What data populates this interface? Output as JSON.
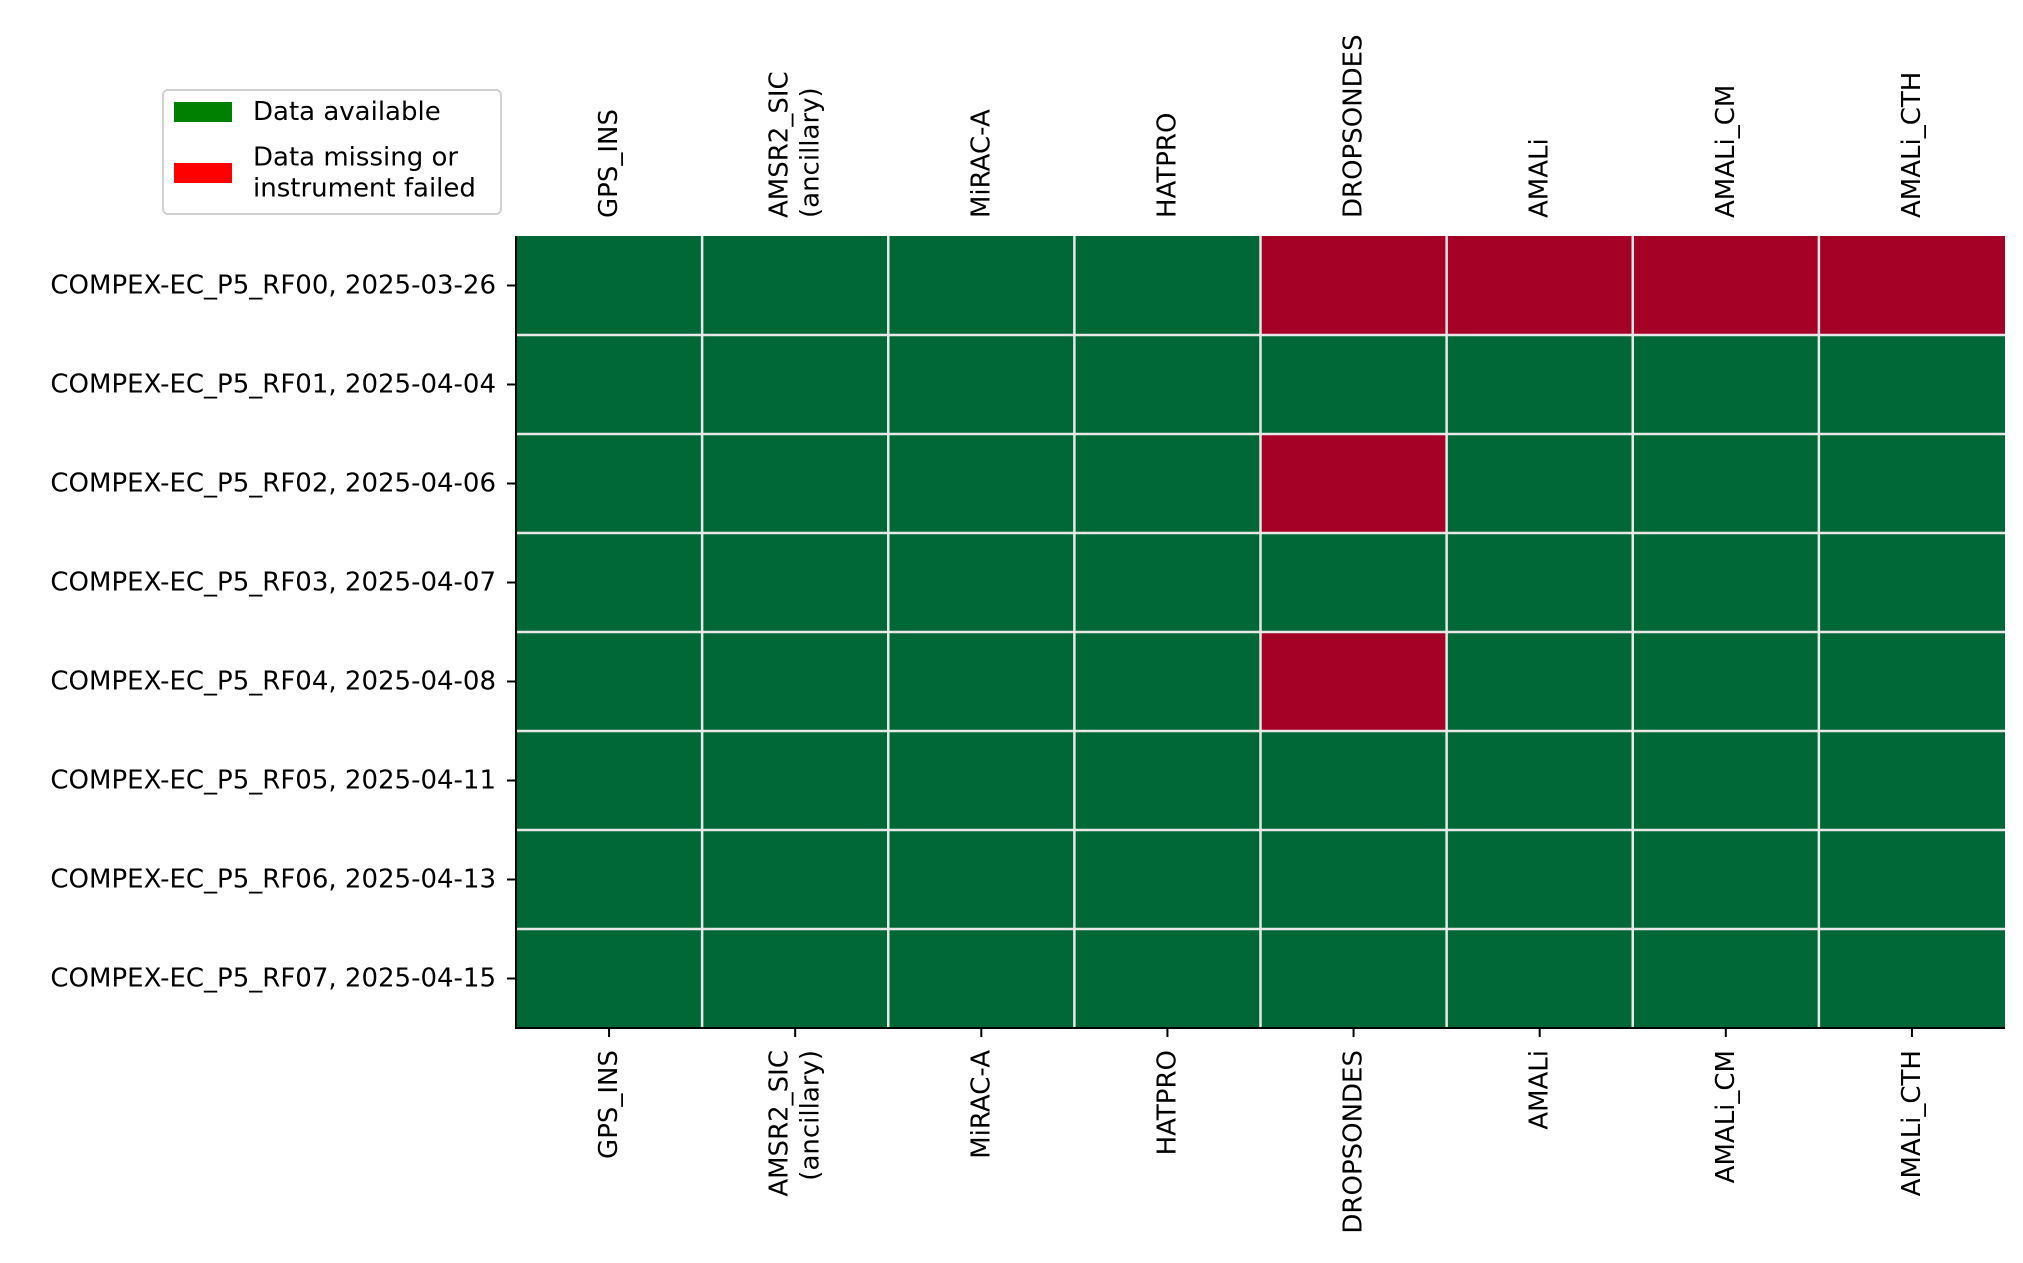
{
  "chart_data": {
    "type": "heatmap",
    "title": "",
    "xlabel": "",
    "ylabel": "",
    "columns": [
      [
        "GPS_INS"
      ],
      [
        "AMSR2_SIC",
        "(ancillary)"
      ],
      [
        "MiRAC-A"
      ],
      [
        "HATPRO"
      ],
      [
        "DROPSONDES"
      ],
      [
        "AMALi"
      ],
      [
        "AMALi_CM"
      ],
      [
        "AMALi_CTH"
      ]
    ],
    "rows": [
      "COMPEX-EC_P5_RF00, 2025-03-26",
      "COMPEX-EC_P5_RF01, 2025-04-04",
      "COMPEX-EC_P5_RF02, 2025-04-06",
      "COMPEX-EC_P5_RF03, 2025-04-07",
      "COMPEX-EC_P5_RF04, 2025-04-08",
      "COMPEX-EC_P5_RF05, 2025-04-11",
      "COMPEX-EC_P5_RF06, 2025-04-13",
      "COMPEX-EC_P5_RF07, 2025-04-15"
    ],
    "values": [
      [
        1,
        1,
        1,
        1,
        0,
        0,
        0,
        0
      ],
      [
        1,
        1,
        1,
        1,
        1,
        1,
        1,
        1
      ],
      [
        1,
        1,
        1,
        1,
        0,
        1,
        1,
        1
      ],
      [
        1,
        1,
        1,
        1,
        1,
        1,
        1,
        1
      ],
      [
        1,
        1,
        1,
        1,
        0,
        1,
        1,
        1
      ],
      [
        1,
        1,
        1,
        1,
        1,
        1,
        1,
        1
      ],
      [
        1,
        1,
        1,
        1,
        1,
        1,
        1,
        1
      ],
      [
        1,
        1,
        1,
        1,
        1,
        1,
        1,
        1
      ]
    ],
    "value_meaning": {
      "1": "Data available",
      "0": "Data missing or instrument failed"
    },
    "cell_colors": {
      "1": "#006837",
      "0": "#a50026"
    },
    "legend": {
      "placement": "top-left",
      "entries": [
        {
          "label": [
            "Data available"
          ],
          "color": "#008000"
        },
        {
          "label": [
            "Data missing or",
            "instrument failed"
          ],
          "color": "#ff0000"
        }
      ]
    },
    "grid_color": "#e8e8e8"
  }
}
